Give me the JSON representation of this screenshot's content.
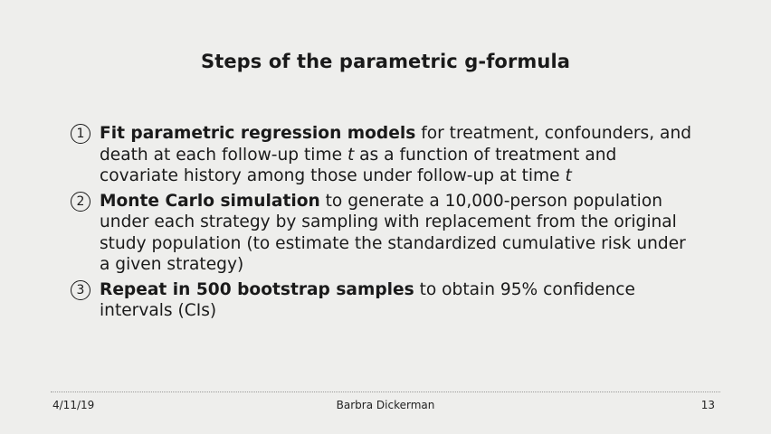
{
  "slide": {
    "title": "Steps of the parametric g-formula"
  },
  "steps": [
    {
      "number": "1",
      "bold": "Fit parametric regression models",
      "before_t1": " for treatment, confounders, and death at each follow-up time ",
      "t1": "t",
      "before_t2": " as a function of treatment and covariate history among those under follow-up at time ",
      "t2": "t"
    },
    {
      "number": "2",
      "bold": "Monte Carlo simulation",
      "rest": " to generate a 10,000-person population under each strategy by sampling with replacement from the original study population (to estimate the standardized cumulative risk under a given strategy)"
    },
    {
      "number": "3",
      "bold": "Repeat in 500 bootstrap samples",
      "rest": " to obtain 95% confidence intervals (CIs)"
    }
  ],
  "footer": {
    "date": "4/11/19",
    "presenter": "Barbra Dickerman",
    "page": "13"
  }
}
